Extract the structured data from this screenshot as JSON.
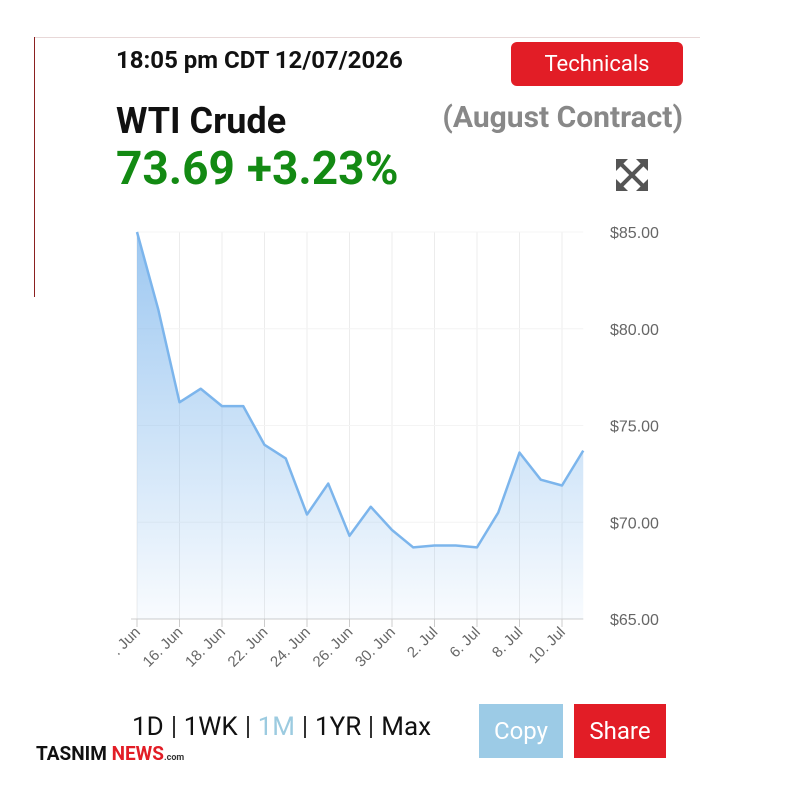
{
  "header": {
    "timestamp": "18:05 pm CDT 12/07/2026",
    "technicals": "Technicals",
    "name": "WTI Crude",
    "contract": "(August Contract)",
    "price": "73.69",
    "change": "+3.23%"
  },
  "chart_data": {
    "type": "area",
    "color": "#7cb5ec",
    "categories": [
      ". Jun",
      null,
      "16. Jun",
      null,
      "18. Jun",
      null,
      "22. Jun",
      null,
      "24. Jun",
      null,
      "26. Jun",
      null,
      "30. Jun",
      null,
      "2. Jul",
      null,
      "6. Jul",
      null,
      "8. Jul",
      null,
      "10. Jul",
      null
    ],
    "values": [
      85.0,
      81.0,
      76.2,
      76.9,
      76.0,
      76.0,
      74.0,
      73.3,
      70.4,
      72.0,
      69.3,
      70.8,
      69.6,
      68.7,
      68.8,
      68.8,
      68.7,
      70.5,
      73.6,
      72.2,
      71.9,
      73.7
    ],
    "ylim": [
      65,
      85
    ],
    "yticks": [
      {
        "value": 65,
        "label": "$65.00"
      },
      {
        "value": 70,
        "label": "$70.00"
      },
      {
        "value": 75,
        "label": "$75.00"
      },
      {
        "value": 80,
        "label": "$80.00"
      },
      {
        "value": 85,
        "label": "$85.00"
      }
    ],
    "grid": true
  },
  "controls": {
    "ranges": [
      "1D",
      "1WK",
      "1M",
      "1YR",
      "Max"
    ],
    "active_range": 2,
    "copy": "Copy",
    "share": "Share"
  },
  "watermark": {
    "brand": "TASNIM",
    "news": "NEWS",
    "domain": ".com"
  }
}
